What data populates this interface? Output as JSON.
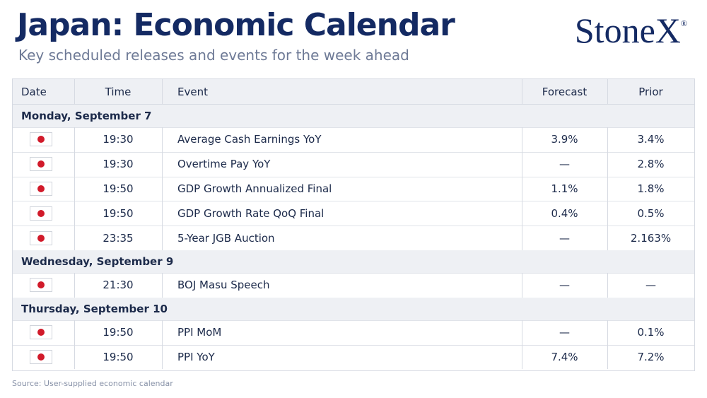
{
  "header": {
    "title": "Japan: Economic Calendar",
    "subtitle": "Key scheduled releases and events for the week ahead",
    "logo": "StoneX",
    "logo_mark": "®"
  },
  "table": {
    "columns": [
      "Date",
      "Time",
      "Event",
      "Forecast",
      "Prior"
    ],
    "sections": [
      {
        "label": "Monday, September 7",
        "rows": [
          {
            "time": "19:30",
            "event": "Average Cash Earnings YoY",
            "forecast": "3.9%",
            "prior": "3.4%"
          },
          {
            "time": "19:30",
            "event": "Overtime Pay YoY",
            "forecast": "—",
            "prior": "2.8%"
          },
          {
            "time": "19:50",
            "event": "GDP Growth Annualized Final",
            "forecast": "1.1%",
            "prior": "1.8%"
          },
          {
            "time": "19:50",
            "event": "GDP Growth Rate QoQ Final",
            "forecast": "0.4%",
            "prior": "0.5%"
          },
          {
            "time": "23:35",
            "event": "5-Year JGB Auction",
            "forecast": "—",
            "prior": "2.163%"
          }
        ]
      },
      {
        "label": "Wednesday, September 9",
        "rows": [
          {
            "time": "21:30",
            "event": "BOJ Masu Speech",
            "forecast": "—",
            "prior": "—"
          }
        ]
      },
      {
        "label": "Thursday, September 10",
        "rows": [
          {
            "time": "19:50",
            "event": "PPI MoM",
            "forecast": "—",
            "prior": "0.1%"
          },
          {
            "time": "19:50",
            "event": "PPI YoY",
            "forecast": "7.4%",
            "prior": "7.2%"
          }
        ]
      }
    ]
  },
  "footer": {
    "source": "Source: User-supplied economic calendar"
  }
}
